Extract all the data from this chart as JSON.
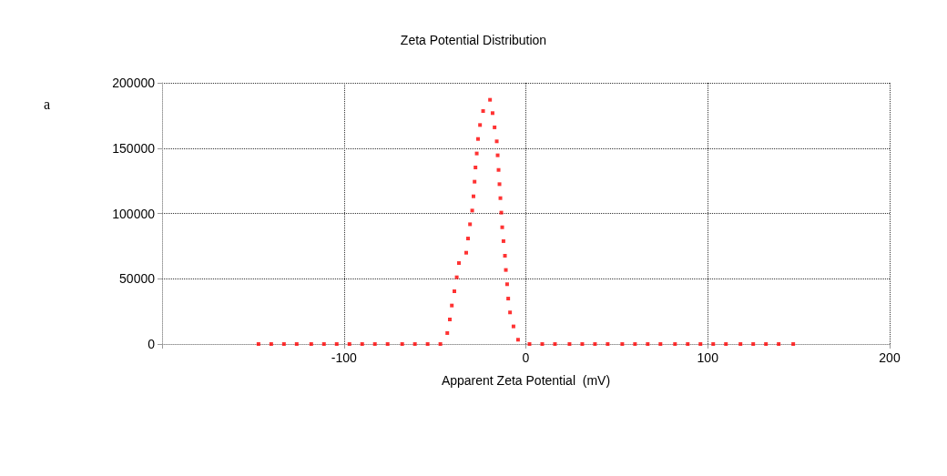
{
  "chart_data": {
    "type": "scatter",
    "title": "Zeta Potential Distribution",
    "xlabel": "Apparent Zeta Potential  (mV)",
    "annotations": [
      "a"
    ],
    "x": [
      -147,
      -140,
      -133,
      -126,
      -118,
      -111,
      -104,
      -97,
      -90,
      -83,
      -76,
      -68,
      -61,
      -54,
      -47,
      -43.2,
      -41.8,
      -40.7,
      -39.3,
      -38,
      -36.8,
      -32.8,
      -31.8,
      -30.7,
      -29.5,
      -28.8,
      -28.2,
      -27.7,
      -27,
      -26.3,
      -25.2,
      -23.5,
      -19.7,
      -18.3,
      -17.2,
      -16,
      -15.5,
      -15,
      -14.5,
      -14,
      -13.5,
      -13,
      -12.3,
      -11.5,
      -11,
      -10.3,
      -9.7,
      -8.7,
      -6.8,
      -4.3,
      2,
      9,
      16,
      24,
      31,
      38,
      45,
      53,
      60,
      67,
      74,
      82,
      89,
      96,
      103,
      110,
      118,
      125,
      132,
      139,
      147
    ],
    "values": [
      0,
      0,
      0,
      0,
      0,
      0,
      0,
      0,
      0,
      0,
      0,
      0,
      0,
      0,
      0,
      8400,
      18800,
      29500,
      40400,
      51100,
      62000,
      69900,
      80800,
      91700,
      102200,
      113100,
      124300,
      135200,
      145900,
      157000,
      167700,
      178400,
      187000,
      176800,
      165900,
      155200,
      144500,
      133300,
      122400,
      111700,
      100600,
      89400,
      78800,
      67600,
      56700,
      45800,
      34800,
      24200,
      13500,
      3300,
      0,
      0,
      0,
      0,
      0,
      0,
      0,
      0,
      0,
      0,
      0,
      0,
      0,
      0,
      0,
      0,
      0,
      0,
      0,
      0,
      0
    ],
    "color": "#ff0000",
    "marker": "square",
    "xlim": [
      -200,
      200
    ],
    "xticks": [
      {
        "value": -200,
        "label": null
      },
      -100,
      0,
      100,
      200
    ],
    "ylim": [
      0,
      200000
    ],
    "yticks": [
      0,
      50000,
      100000,
      150000,
      200000
    ],
    "grid": true
  }
}
